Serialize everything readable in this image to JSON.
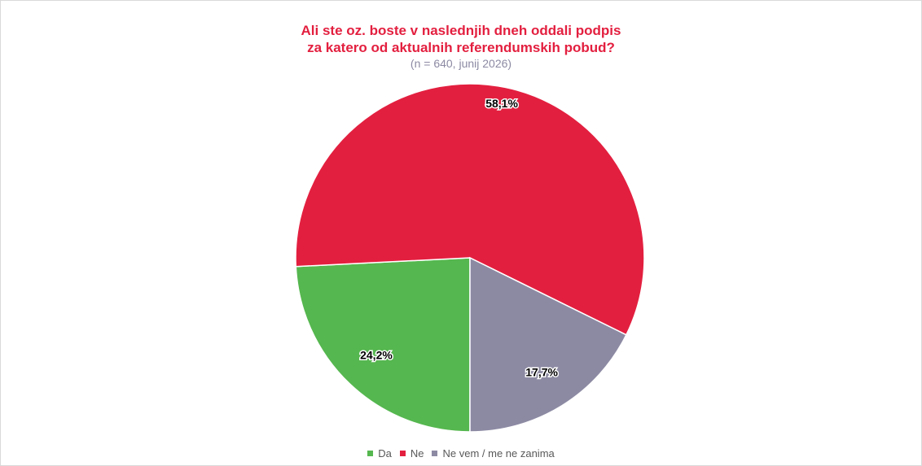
{
  "chart_data": {
    "type": "pie",
    "title_line1": "Ali ste oz. boste v naslednjih dneh oddali podpis",
    "title_line2": "za katero od aktualnih referendumskih pobud?",
    "subtitle": "(n = 640, junij 2026)",
    "slices": [
      {
        "name": "Da",
        "value": 24.2,
        "label": "24,2%",
        "color": "#55b74f"
      },
      {
        "name": "Ne",
        "value": 58.1,
        "label": "58,1%",
        "color": "#e31f3f"
      },
      {
        "name": "Ne vem / me ne zanima",
        "value": 17.7,
        "label": "17,7%",
        "color": "#8c8aa3"
      }
    ],
    "legend_position": "bottom"
  }
}
